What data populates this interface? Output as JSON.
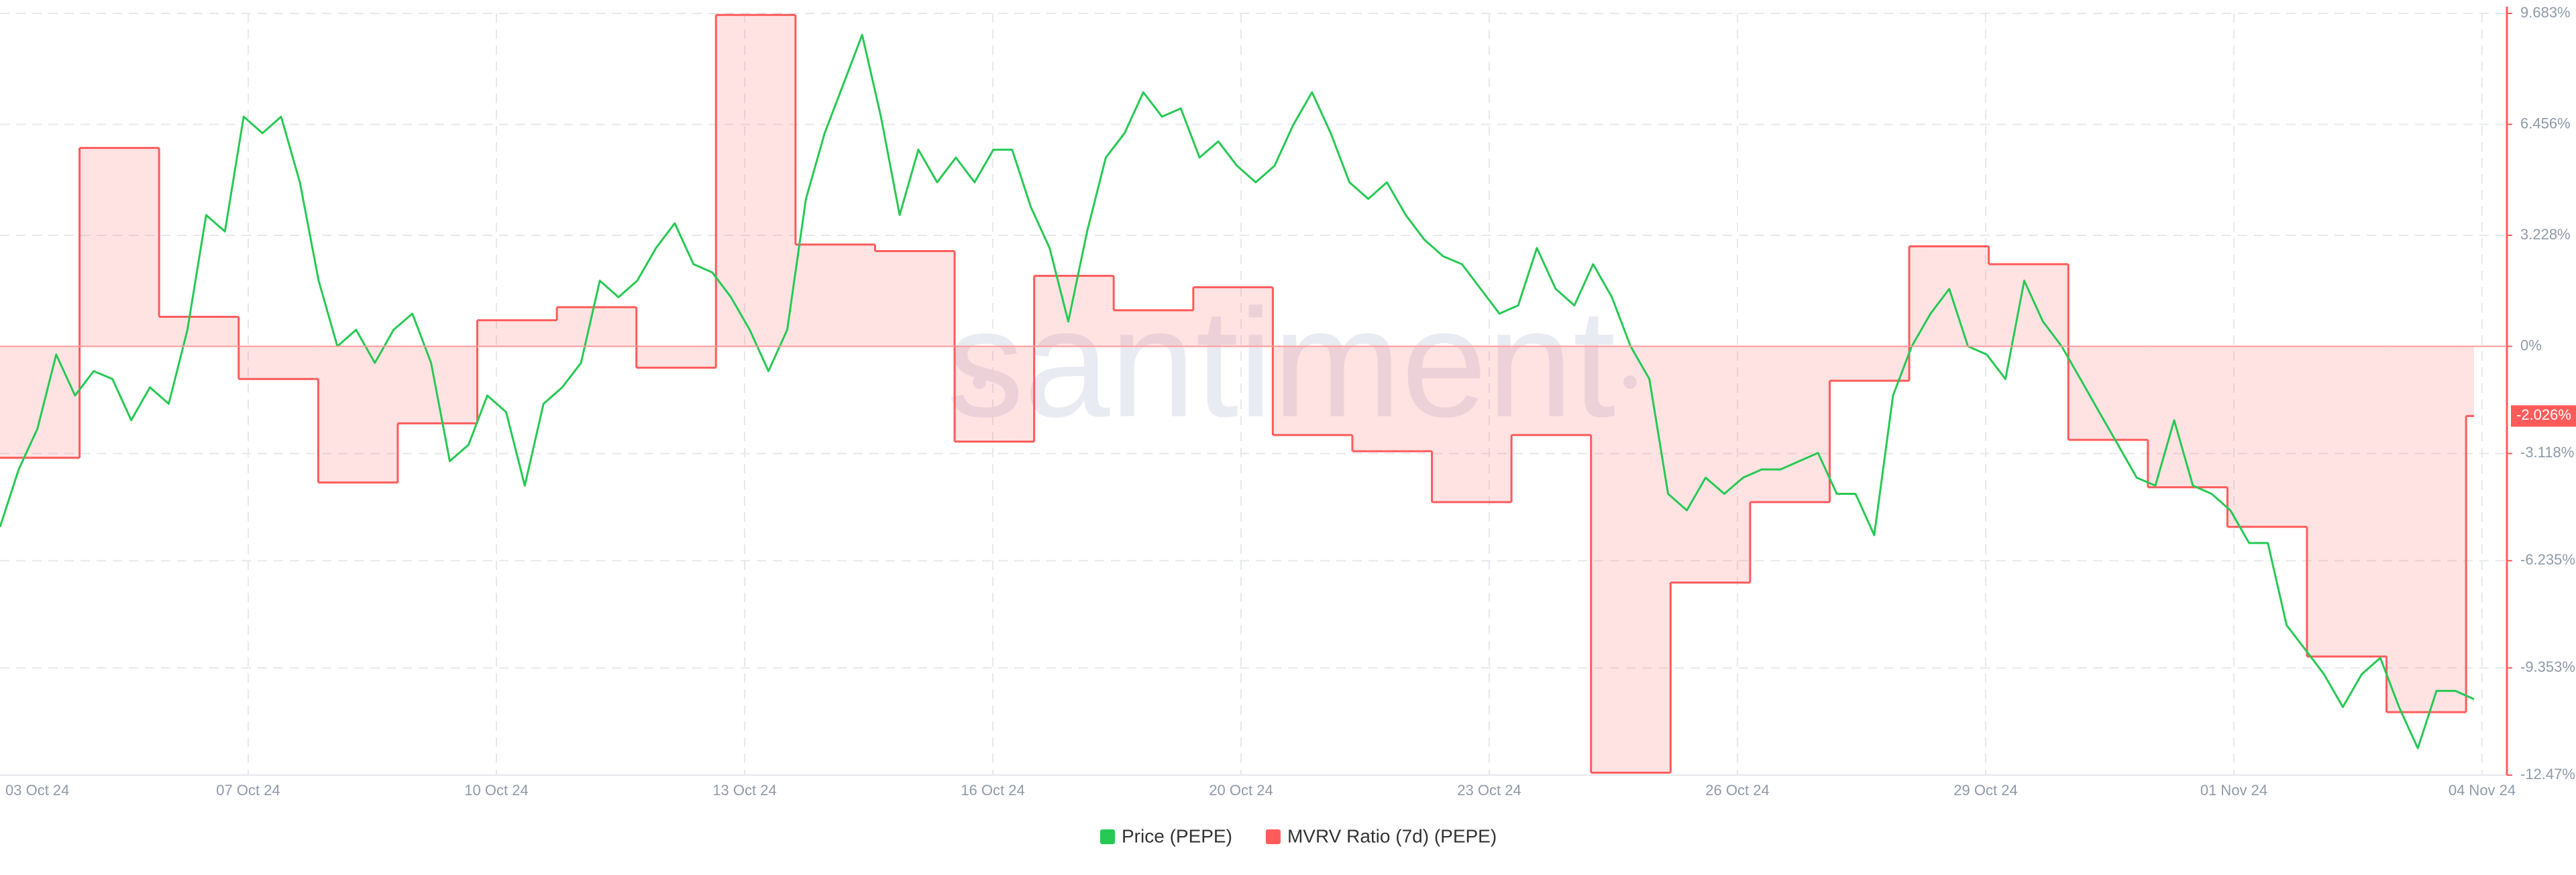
{
  "chart_data": {
    "type": "line",
    "watermark": "santiment",
    "xticks": [
      "03 Oct 24",
      "07 Oct 24",
      "10 Oct 24",
      "13 Oct 24",
      "16 Oct 24",
      "20 Oct 24",
      "23 Oct 24",
      "26 Oct 24",
      "29 Oct 24",
      "01 Nov 24",
      "04 Nov 24"
    ],
    "ylim": [
      -12.47,
      9.683
    ],
    "yticks": [
      {
        "value": 9.683,
        "label": "9.683%"
      },
      {
        "value": 6.456,
        "label": "6.456%"
      },
      {
        "value": 3.228,
        "label": "3.228%"
      },
      {
        "value": 0,
        "label": "0%"
      },
      {
        "value": -3.118,
        "label": "-3.118%"
      },
      {
        "value": -6.235,
        "label": "-6.235%"
      },
      {
        "value": -9.353,
        "label": "-9.353%"
      },
      {
        "value": -12.47,
        "label": "-12.47%"
      }
    ],
    "grid": true,
    "legend": "bottom",
    "series": [
      {
        "name": "Price (PEPE)",
        "color": "#26c953",
        "style": "line",
        "values": [
          -5.25,
          -3.58,
          -2.39,
          -0.24,
          -1.43,
          -0.72,
          -0.95,
          -2.15,
          -1.19,
          -1.67,
          0.48,
          3.82,
          3.34,
          6.68,
          6.2,
          6.68,
          4.77,
          1.91,
          0,
          0.48,
          -0.48,
          0.48,
          0.95,
          -0.48,
          -3.34,
          -2.86,
          -1.43,
          -1.91,
          -4.05,
          -1.67,
          -1.19,
          -0.48,
          1.91,
          1.43,
          1.91,
          2.86,
          3.58,
          2.39,
          2.15,
          1.43,
          0.48,
          -0.72,
          0.48,
          4.29,
          6.2,
          7.63,
          9.06,
          6.68,
          3.82,
          5.72,
          4.77,
          5.49,
          4.77,
          5.72,
          5.72,
          4.05,
          2.86,
          0.72,
          3.34,
          5.49,
          6.2,
          7.39,
          6.68,
          6.92,
          5.49,
          5.96,
          5.25,
          4.77,
          5.25,
          6.44,
          7.39,
          6.2,
          4.77,
          4.29,
          4.77,
          3.82,
          3.1,
          2.62,
          2.39,
          1.67,
          0.95,
          1.19,
          2.86,
          1.67,
          1.19,
          2.39,
          1.43,
          0,
          -0.95,
          -4.29,
          -4.77,
          -3.82,
          -4.29,
          -3.82,
          -3.58,
          -3.58,
          -3.34,
          -3.1,
          -4.29,
          -4.29,
          -5.49,
          -1.43,
          0,
          0.95,
          1.67,
          0,
          -0.24,
          -0.95,
          1.91,
          0.72,
          0,
          -0.95,
          -1.91,
          -2.86,
          -3.82,
          -4.05,
          -2.15,
          -4.05,
          -4.29,
          -4.77,
          -5.72,
          -5.72,
          -8.11,
          -8.82,
          -9.54,
          -10.49,
          -9.54,
          -9.06,
          -10.49,
          -11.69,
          -10.02,
          -10.02,
          -10.26
        ]
      },
      {
        "name": "MVRV Ratio (7d) (PEPE)",
        "color": "#ff5b5b",
        "style": "step",
        "values": [
          -3.24,
          5.77,
          0.86,
          -0.95,
          -3.96,
          -2.24,
          0.76,
          1.14,
          -0.62,
          9.64,
          2.96,
          2.77,
          -2.77,
          2.05,
          1.05,
          1.72,
          -2.58,
          -3.05,
          -4.53,
          -2.58,
          -12.4,
          -6.87,
          -4.53,
          -1.0,
          2.91,
          2.39,
          -2.72,
          -4.1,
          -5.25,
          -9.02,
          -10.64,
          -2.026
        ],
        "current_label": "-2.026%"
      }
    ]
  }
}
